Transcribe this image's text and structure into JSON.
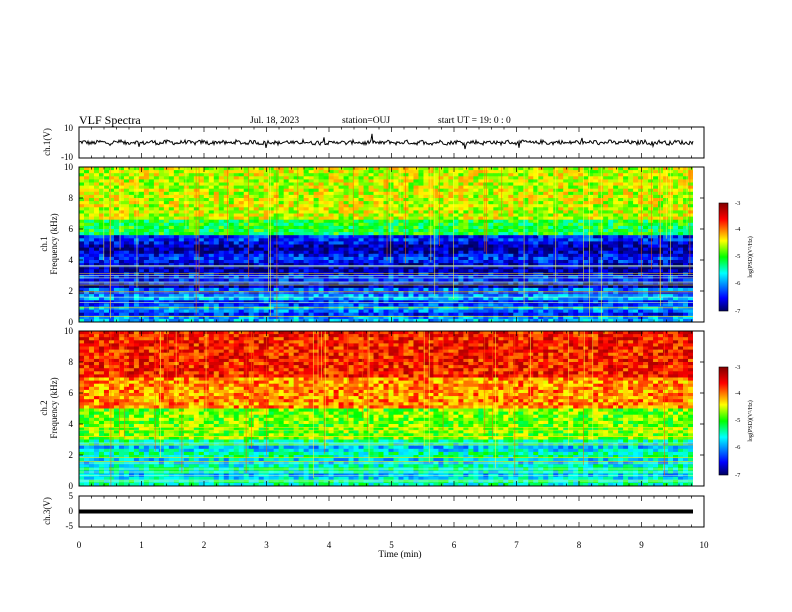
{
  "header": {
    "title": "VLF Spectra",
    "date": "Jul. 18, 2023",
    "station": "station=OUJ",
    "start": "start UT =  19: 0  : 0"
  },
  "chart_data": [
    {
      "type": "line",
      "panel": "ch1-waveform",
      "ylabel": "ch.1(V)",
      "ylim": [
        -10,
        10
      ],
      "yticks": [
        "10",
        "-10"
      ],
      "xlim": [
        0,
        10
      ],
      "series": [
        {
          "values": "noisy signal centred near 0 V, amplitude about ±2 V, with sparse spikes",
          "color": "#000000"
        }
      ]
    },
    {
      "type": "heatmap",
      "panel": "ch1-spectrogram",
      "ylabel_top": "ch.1",
      "ylabel": "Frequency (kHz)",
      "ylim": [
        0,
        10
      ],
      "yticks": [
        "0",
        "2",
        "4",
        "6",
        "8",
        "10"
      ],
      "xlim": [
        0,
        9.85
      ],
      "description": "dark blue low-power band from about 2 to 5.5 kHz, yellow/green above 6 kHz",
      "colorbar": {
        "label": "log(PSD)(V²/Hz)",
        "min": -7,
        "max": -3,
        "ticks": [
          "-3",
          "-4",
          "-5",
          "-6",
          "-7"
        ]
      }
    },
    {
      "type": "heatmap",
      "panel": "ch2-spectrogram",
      "ylabel_top": "ch.2",
      "ylabel": "Frequency (kHz)",
      "ylim": [
        0,
        10
      ],
      "yticks": [
        "0",
        "2",
        "4",
        "6",
        "8",
        "10"
      ],
      "xlim": [
        0,
        9.85
      ],
      "description": "red/orange high power above 6 kHz, green/cyan banded below 3 kHz",
      "colorbar": {
        "label": "log(PSD)(V²/Hz)",
        "min": -7,
        "max": -3,
        "ticks": [
          "-3",
          "-4",
          "-5",
          "-6",
          "-7"
        ]
      }
    },
    {
      "type": "line",
      "panel": "ch3-waveform",
      "ylabel": "ch.3(V)",
      "ylim": [
        -5,
        5
      ],
      "yticks": [
        "5",
        "0",
        "-5"
      ],
      "xlim": [
        0,
        10
      ],
      "series": [
        {
          "values": "flat line at about -1.5 V",
          "color": "#000000"
        }
      ]
    }
  ],
  "x_axis": {
    "label": "Time (min)",
    "ticks": [
      "0",
      "1",
      "2",
      "3",
      "4",
      "5",
      "6",
      "7",
      "8",
      "9",
      "10"
    ]
  },
  "colors": {
    "jet": [
      "#000080",
      "#0000ff",
      "#00ffff",
      "#00ff00",
      "#ffff00",
      "#ff0000",
      "#800000"
    ]
  }
}
